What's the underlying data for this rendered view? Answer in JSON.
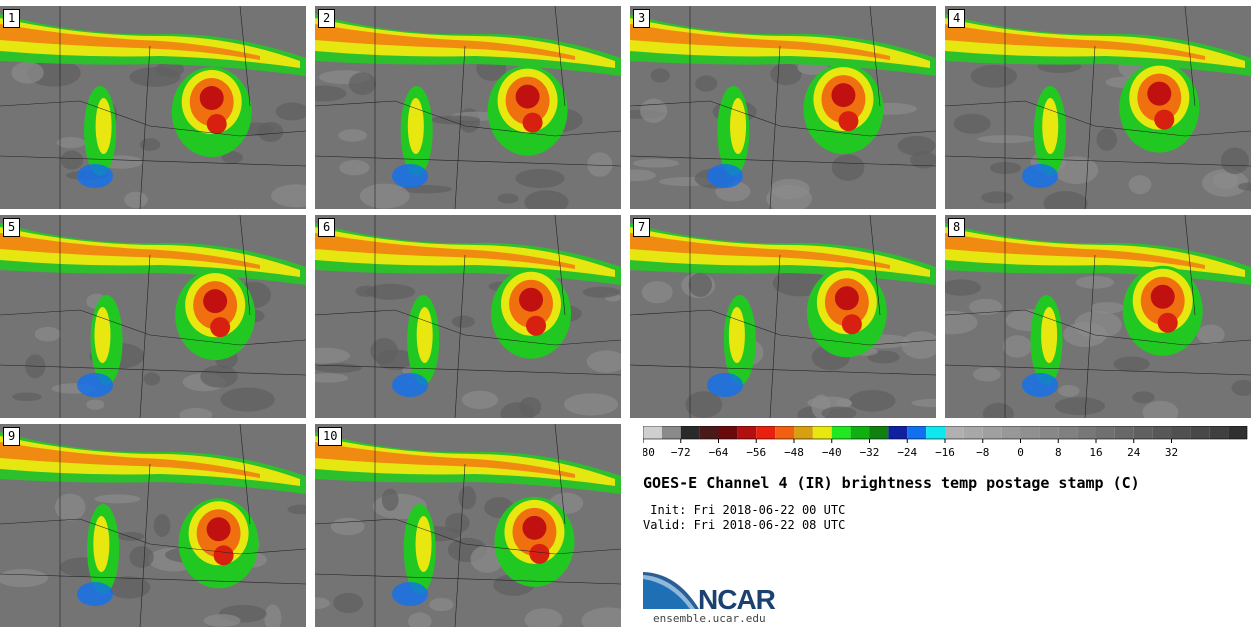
{
  "panels": [
    {
      "label": "1"
    },
    {
      "label": "2"
    },
    {
      "label": "3"
    },
    {
      "label": "4"
    },
    {
      "label": "5"
    },
    {
      "label": "6"
    },
    {
      "label": "7"
    },
    {
      "label": "8"
    },
    {
      "label": "9"
    },
    {
      "label": "10"
    }
  ],
  "colorbar": {
    "colors": [
      "#cfcfcf",
      "#8a8a8a",
      "#2a2a2a",
      "#4a1a1a",
      "#6a0a0a",
      "#b01010",
      "#e82010",
      "#f06010",
      "#d8a010",
      "#e8e810",
      "#20e820",
      "#10b010",
      "#108010",
      "#1020a0",
      "#1070f0",
      "#10e8f0",
      "#b0b0b0",
      "#a8a8a8",
      "#a0a0a0",
      "#989898",
      "#909090",
      "#888888",
      "#808080",
      "#787878",
      "#707070",
      "#686868",
      "#606060",
      "#585858",
      "#505050",
      "#484848",
      "#404040",
      "#303030"
    ],
    "tick_labels": [
      "−80",
      "−72",
      "−64",
      "−56",
      "−48",
      "−40",
      "−32",
      "−24",
      "−16",
      "−8",
      "0",
      "8",
      "16",
      "24",
      "32"
    ]
  },
  "title": "GOES-E Channel 4 (IR) brightness temp postage stamp (C)",
  "init_text": " Init: Fri 2018-06-22 00 UTC",
  "valid_text": "Valid: Fri 2018-06-22 08 UTC",
  "logo": {
    "name": "NCAR",
    "url": "ensemble.ucar.edu"
  }
}
